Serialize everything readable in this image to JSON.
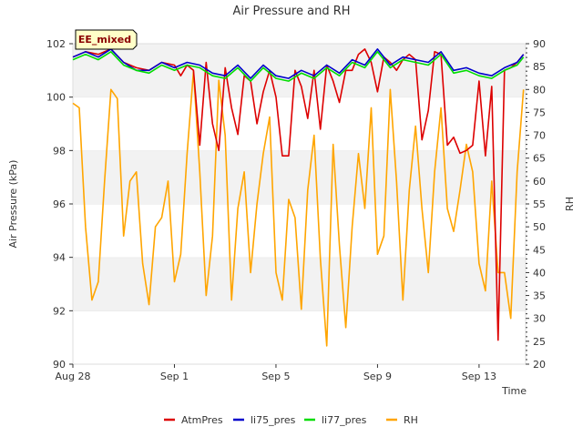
{
  "chart_data": {
    "type": "line",
    "title": "Air Pressure and RH",
    "site_badge": "EE_mixed",
    "xlabel": "Time",
    "ylabel": "Air Pressure (kPa)",
    "y2label": "RH",
    "xlim": [
      "2023-08-28",
      "2023-09-14 20:00"
    ],
    "x_ticks": [
      {
        "date": "2023-08-28",
        "label": "Aug 28"
      },
      {
        "date": "2023-09-01",
        "label": "Sep 1"
      },
      {
        "date": "2023-09-05",
        "label": "Sep 5"
      },
      {
        "date": "2023-09-09",
        "label": "Sep 9"
      },
      {
        "date": "2023-09-13",
        "label": "Sep 13"
      }
    ],
    "ylim": [
      90,
      102
    ],
    "y_ticks": [
      90,
      92,
      94,
      96,
      98,
      100,
      102
    ],
    "y2lim": [
      20,
      90
    ],
    "y2_ticks": [
      20,
      25,
      30,
      35,
      40,
      45,
      50,
      55,
      60,
      65,
      70,
      75,
      80,
      85,
      90
    ],
    "grid": "horizontal bands",
    "legend_position": "bottom-center",
    "series": [
      {
        "name": "AtmPres",
        "color": "#dd0000",
        "axis": "left",
        "x": [
          "2023-08-28 00:00",
          "2023-08-28 12:00",
          "2023-08-29 00:00",
          "2023-08-29 12:00",
          "2023-08-30 00:00",
          "2023-08-30 12:00",
          "2023-08-31 00:00",
          "2023-08-31 12:00",
          "2023-09-01 00:00",
          "2023-09-01 06:00",
          "2023-09-01 12:00",
          "2023-09-01 18:00",
          "2023-09-02 00:00",
          "2023-09-02 06:00",
          "2023-09-02 12:00",
          "2023-09-02 18:00",
          "2023-09-03 00:00",
          "2023-09-03 06:00",
          "2023-09-03 12:00",
          "2023-09-03 18:00",
          "2023-09-04 00:00",
          "2023-09-04 06:00",
          "2023-09-04 12:00",
          "2023-09-04 18:00",
          "2023-09-05 00:00",
          "2023-09-05 06:00",
          "2023-09-05 12:00",
          "2023-09-05 18:00",
          "2023-09-06 00:00",
          "2023-09-06 06:00",
          "2023-09-06 12:00",
          "2023-09-06 18:00",
          "2023-09-07 00:00",
          "2023-09-07 06:00",
          "2023-09-07 12:00",
          "2023-09-07 18:00",
          "2023-09-08 00:00",
          "2023-09-08 06:00",
          "2023-09-08 12:00",
          "2023-09-08 18:00",
          "2023-09-09 00:00",
          "2023-09-09 06:00",
          "2023-09-09 12:00",
          "2023-09-09 18:00",
          "2023-09-10 00:00",
          "2023-09-10 06:00",
          "2023-09-10 12:00",
          "2023-09-10 18:00",
          "2023-09-11 00:00",
          "2023-09-11 06:00",
          "2023-09-11 12:00",
          "2023-09-11 18:00",
          "2023-09-12 00:00",
          "2023-09-12 06:00",
          "2023-09-12 12:00",
          "2023-09-12 18:00",
          "2023-09-13 00:00",
          "2023-09-13 06:00",
          "2023-09-13 12:00",
          "2023-09-13 18:00",
          "2023-09-14 00:00",
          "2023-09-14 06:00",
          "2023-09-14 12:00",
          "2023-09-14 18:00"
        ],
        "values": [
          101.5,
          101.7,
          101.6,
          101.8,
          101.3,
          101.1,
          101.0,
          101.3,
          101.2,
          100.8,
          101.2,
          101.0,
          98.2,
          101.3,
          99.0,
          98.0,
          101.1,
          99.6,
          98.6,
          100.8,
          100.6,
          99.0,
          100.2,
          101.0,
          100.0,
          97.8,
          97.8,
          101.0,
          100.4,
          99.2,
          101.0,
          98.8,
          101.2,
          100.6,
          99.8,
          101.0,
          101.0,
          101.6,
          101.8,
          101.3,
          100.2,
          101.5,
          101.3,
          101.0,
          101.4,
          101.6,
          101.4,
          98.4,
          99.5,
          101.7,
          101.6,
          98.2,
          98.5,
          97.9,
          98.0,
          98.2,
          100.6,
          97.8,
          100.4,
          90.9,
          101.0,
          101.1,
          101.3,
          101.6
        ]
      },
      {
        "name": "li75_pres",
        "color": "#0000cc",
        "axis": "left",
        "x": [
          "2023-08-28 00:00",
          "2023-08-28 12:00",
          "2023-08-29 00:00",
          "2023-08-29 12:00",
          "2023-08-30 00:00",
          "2023-08-30 12:00",
          "2023-08-31 00:00",
          "2023-08-31 12:00",
          "2023-09-01 00:00",
          "2023-09-01 12:00",
          "2023-09-02 00:00",
          "2023-09-02 12:00",
          "2023-09-03 00:00",
          "2023-09-03 12:00",
          "2023-09-04 00:00",
          "2023-09-04 12:00",
          "2023-09-05 00:00",
          "2023-09-05 12:00",
          "2023-09-06 00:00",
          "2023-09-06 12:00",
          "2023-09-07 00:00",
          "2023-09-07 12:00",
          "2023-09-08 00:00",
          "2023-09-08 12:00",
          "2023-09-09 00:00",
          "2023-09-09 12:00",
          "2023-09-10 00:00",
          "2023-09-10 12:00",
          "2023-09-11 00:00",
          "2023-09-11 12:00",
          "2023-09-12 00:00",
          "2023-09-12 12:00",
          "2023-09-13 00:00",
          "2023-09-13 12:00",
          "2023-09-14 00:00",
          "2023-09-14 12:00",
          "2023-09-14 18:00"
        ],
        "values": [
          101.5,
          101.7,
          101.5,
          101.8,
          101.3,
          101.0,
          101.0,
          101.3,
          101.1,
          101.3,
          101.2,
          100.9,
          100.8,
          101.2,
          100.7,
          101.2,
          100.8,
          100.7,
          101.0,
          100.8,
          101.2,
          100.9,
          101.4,
          101.2,
          101.8,
          101.2,
          101.5,
          101.4,
          101.3,
          101.7,
          101.0,
          101.1,
          100.9,
          100.8,
          101.1,
          101.3,
          101.6
        ]
      },
      {
        "name": "li77_pres",
        "color": "#00dd00",
        "axis": "left",
        "x": [
          "2023-08-28 00:00",
          "2023-08-28 12:00",
          "2023-08-29 00:00",
          "2023-08-29 12:00",
          "2023-08-30 00:00",
          "2023-08-30 12:00",
          "2023-08-31 00:00",
          "2023-08-31 12:00",
          "2023-09-01 00:00",
          "2023-09-01 12:00",
          "2023-09-02 00:00",
          "2023-09-02 12:00",
          "2023-09-03 00:00",
          "2023-09-03 12:00",
          "2023-09-04 00:00",
          "2023-09-04 12:00",
          "2023-09-05 00:00",
          "2023-09-05 12:00",
          "2023-09-06 00:00",
          "2023-09-06 12:00",
          "2023-09-07 00:00",
          "2023-09-07 12:00",
          "2023-09-08 00:00",
          "2023-09-08 12:00",
          "2023-09-09 00:00",
          "2023-09-09 12:00",
          "2023-09-10 00:00",
          "2023-09-10 12:00",
          "2023-09-11 00:00",
          "2023-09-11 12:00",
          "2023-09-12 00:00",
          "2023-09-12 12:00",
          "2023-09-13 00:00",
          "2023-09-13 12:00",
          "2023-09-14 00:00",
          "2023-09-14 12:00",
          "2023-09-14 18:00"
        ],
        "values": [
          101.4,
          101.6,
          101.4,
          101.7,
          101.2,
          101.0,
          100.9,
          101.2,
          101.0,
          101.2,
          101.1,
          100.8,
          100.7,
          101.1,
          100.6,
          101.1,
          100.7,
          100.6,
          100.9,
          100.7,
          101.1,
          100.8,
          101.3,
          101.1,
          101.7,
          101.1,
          101.4,
          101.3,
          101.2,
          101.6,
          100.9,
          101.0,
          100.8,
          100.7,
          101.0,
          101.2,
          101.5
        ]
      },
      {
        "name": "RH",
        "color": "#ffa500",
        "axis": "right",
        "x": [
          "2023-08-28 00:00",
          "2023-08-28 06:00",
          "2023-08-28 12:00",
          "2023-08-28 18:00",
          "2023-08-29 00:00",
          "2023-08-29 06:00",
          "2023-08-29 12:00",
          "2023-08-29 18:00",
          "2023-08-30 00:00",
          "2023-08-30 06:00",
          "2023-08-30 12:00",
          "2023-08-30 18:00",
          "2023-08-31 00:00",
          "2023-08-31 06:00",
          "2023-08-31 12:00",
          "2023-08-31 18:00",
          "2023-09-01 00:00",
          "2023-09-01 06:00",
          "2023-09-01 12:00",
          "2023-09-01 18:00",
          "2023-09-02 00:00",
          "2023-09-02 06:00",
          "2023-09-02 12:00",
          "2023-09-02 18:00",
          "2023-09-03 00:00",
          "2023-09-03 06:00",
          "2023-09-03 12:00",
          "2023-09-03 18:00",
          "2023-09-04 00:00",
          "2023-09-04 06:00",
          "2023-09-04 12:00",
          "2023-09-04 18:00",
          "2023-09-05 00:00",
          "2023-09-05 06:00",
          "2023-09-05 12:00",
          "2023-09-05 18:00",
          "2023-09-06 00:00",
          "2023-09-06 06:00",
          "2023-09-06 12:00",
          "2023-09-06 18:00",
          "2023-09-07 00:00",
          "2023-09-07 06:00",
          "2023-09-07 12:00",
          "2023-09-07 18:00",
          "2023-09-08 00:00",
          "2023-09-08 06:00",
          "2023-09-08 12:00",
          "2023-09-08 18:00",
          "2023-09-09 00:00",
          "2023-09-09 06:00",
          "2023-09-09 12:00",
          "2023-09-09 18:00",
          "2023-09-10 00:00",
          "2023-09-10 06:00",
          "2023-09-10 12:00",
          "2023-09-10 18:00",
          "2023-09-11 00:00",
          "2023-09-11 06:00",
          "2023-09-11 12:00",
          "2023-09-11 18:00",
          "2023-09-12 00:00",
          "2023-09-12 06:00",
          "2023-09-12 12:00",
          "2023-09-12 18:00",
          "2023-09-13 00:00",
          "2023-09-13 06:00",
          "2023-09-13 12:00",
          "2023-09-13 18:00",
          "2023-09-14 00:00",
          "2023-09-14 06:00",
          "2023-09-14 12:00",
          "2023-09-14 18:00"
        ],
        "values": [
          77,
          76,
          50,
          34,
          38,
          60,
          80,
          78,
          48,
          60,
          62,
          42,
          33,
          50,
          52,
          60,
          38,
          44,
          66,
          84,
          62,
          35,
          48,
          82,
          70,
          34,
          54,
          62,
          40,
          55,
          66,
          74,
          40,
          34,
          56,
          52,
          32,
          58,
          70,
          43,
          24,
          68,
          46,
          28,
          50,
          66,
          54,
          76,
          44,
          48,
          80,
          60,
          34,
          58,
          72,
          54,
          40,
          62,
          76,
          54,
          49,
          58,
          68,
          62,
          42,
          36,
          60,
          40,
          40,
          30,
          62,
          80
        ]
      }
    ]
  }
}
